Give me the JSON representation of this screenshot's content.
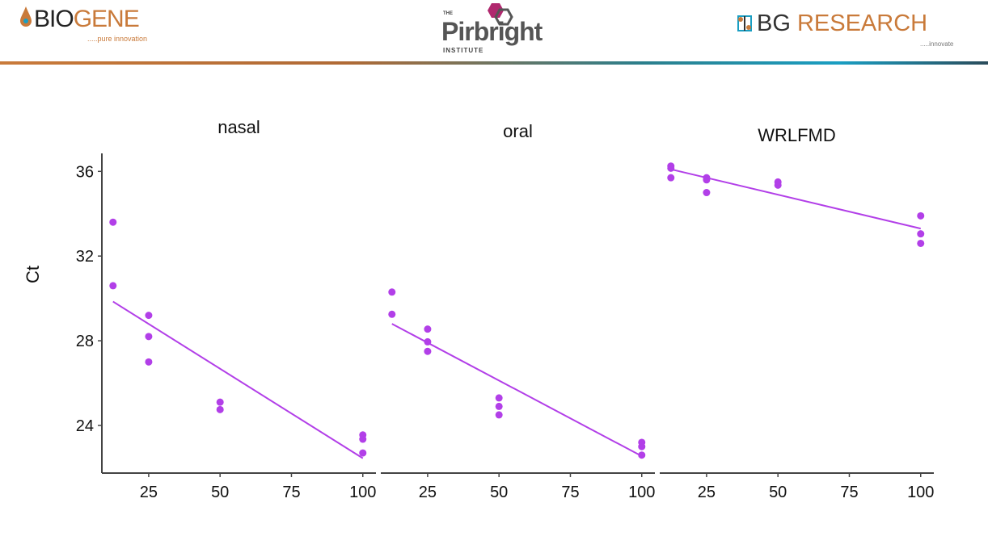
{
  "header": {
    "logo_left": {
      "name_a": "BIO",
      "name_b": "GENE",
      "tagline": ".....pure innovation"
    },
    "logo_center": {
      "the": "THE",
      "name": "Pirbright",
      "sub": "INSTITUTE"
    },
    "logo_right": {
      "name_a": "BG",
      "name_b": " RESEARCH",
      "tagline": ".....innovate"
    }
  },
  "chart_data": [
    {
      "type": "scatter",
      "title": "nasal",
      "ylabel": "Ct",
      "xlabel": "",
      "xlim": [
        8.6,
        104.6
      ],
      "ylim": [
        21.75,
        36.85
      ],
      "xticks": [
        25,
        50,
        75,
        100
      ],
      "yticks": [
        24,
        28,
        32,
        36
      ],
      "color": "#b23fe8",
      "points": [
        [
          12.5,
          33.6
        ],
        [
          12.5,
          30.6
        ],
        [
          25,
          29.2
        ],
        [
          25,
          28.2
        ],
        [
          25,
          27.0
        ],
        [
          50,
          25.1
        ],
        [
          50,
          24.75
        ],
        [
          100,
          23.55
        ],
        [
          100,
          23.35
        ],
        [
          100,
          22.7
        ]
      ],
      "fit_line": [
        [
          12.5,
          29.85
        ],
        [
          100,
          22.45
        ]
      ]
    },
    {
      "type": "scatter",
      "title": "oral",
      "xlim": [
        8.6,
        104.6
      ],
      "ylim": [
        21.75,
        36.85
      ],
      "xticks": [
        25,
        50,
        75,
        100
      ],
      "color": "#b23fe8",
      "points": [
        [
          12.5,
          30.3
        ],
        [
          12.5,
          29.25
        ],
        [
          25,
          28.55
        ],
        [
          25,
          27.95
        ],
        [
          25,
          27.5
        ],
        [
          50,
          25.3
        ],
        [
          50,
          24.9
        ],
        [
          50,
          24.5
        ],
        [
          100,
          23.2
        ],
        [
          100,
          23.0
        ],
        [
          100,
          22.6
        ]
      ],
      "fit_line": [
        [
          12.5,
          28.8
        ],
        [
          100,
          22.55
        ]
      ]
    },
    {
      "type": "scatter",
      "title": "WRLFMD",
      "xlim": [
        8.6,
        104.6
      ],
      "ylim": [
        21.75,
        36.85
      ],
      "xticks": [
        25,
        50,
        75,
        100
      ],
      "color": "#b23fe8",
      "points": [
        [
          12.5,
          36.25
        ],
        [
          12.5,
          36.15
        ],
        [
          12.5,
          35.7
        ],
        [
          25,
          35.7
        ],
        [
          25,
          35.6
        ],
        [
          25,
          35.0
        ],
        [
          50,
          35.5
        ],
        [
          50,
          35.35
        ],
        [
          100,
          33.9
        ],
        [
          100,
          33.05
        ],
        [
          100,
          32.6
        ]
      ],
      "fit_line": [
        [
          12.5,
          36.1
        ],
        [
          100,
          33.3
        ]
      ]
    }
  ]
}
